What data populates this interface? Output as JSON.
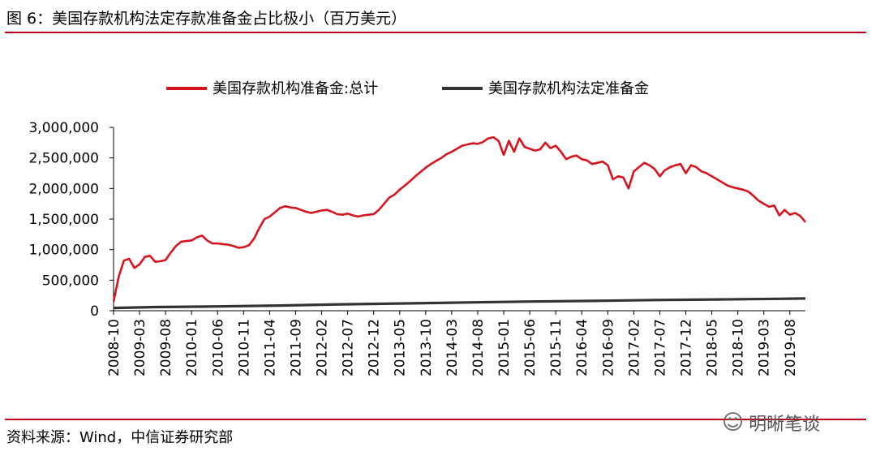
{
  "figure": {
    "title": "图 6：美国存款机构法定存款准备金占比极小（百万美元）",
    "source": "资料来源：Wind，中信证券研究部",
    "watermark": "明晰笔谈",
    "watermark_icon": "wechat-icon"
  },
  "colors": {
    "accent": "#c0001c",
    "series_total": "#d7141e",
    "series_required": "#333333"
  },
  "chart_data": {
    "type": "line",
    "title": "",
    "xlabel": "",
    "ylabel": "",
    "ylim": [
      0,
      3000000
    ],
    "yticks": [
      0,
      500000,
      1000000,
      1500000,
      2000000,
      2500000,
      3000000
    ],
    "ytick_labels": [
      "0",
      "500,000",
      "1,000,000",
      "1,500,000",
      "2,000,000",
      "2,500,000",
      "3,000,000"
    ],
    "x_range": [
      "2008-10",
      "2019-11"
    ],
    "xtick_labels": [
      "2008-10",
      "2009-03",
      "2009-08",
      "2010-01",
      "2010-06",
      "2010-11",
      "2011-04",
      "2011-09",
      "2012-02",
      "2012-07",
      "2012-12",
      "2013-05",
      "2013-10",
      "2014-03",
      "2014-08",
      "2015-01",
      "2015-06",
      "2015-11",
      "2016-04",
      "2016-09",
      "2017-02",
      "2017-07",
      "2017-12",
      "2018-05",
      "2018-10",
      "2019-03",
      "2019-08"
    ],
    "legend_position": "top",
    "grid": false,
    "series": [
      {
        "name": "美国存款机构准备金:总计",
        "color": "#d7141e",
        "points": [
          [
            "2008-10",
            150000
          ],
          [
            "2008-11",
            560000
          ],
          [
            "2008-12",
            820000
          ],
          [
            "2009-01",
            850000
          ],
          [
            "2009-02",
            700000
          ],
          [
            "2009-03",
            760000
          ],
          [
            "2009-04",
            880000
          ],
          [
            "2009-05",
            900000
          ],
          [
            "2009-06",
            800000
          ],
          [
            "2009-07",
            810000
          ],
          [
            "2009-08",
            830000
          ],
          [
            "2009-09",
            950000
          ],
          [
            "2009-10",
            1060000
          ],
          [
            "2009-11",
            1130000
          ],
          [
            "2009-12",
            1140000
          ],
          [
            "2010-01",
            1150000
          ],
          [
            "2010-02",
            1200000
          ],
          [
            "2010-03",
            1230000
          ],
          [
            "2010-04",
            1150000
          ],
          [
            "2010-05",
            1100000
          ],
          [
            "2010-06",
            1100000
          ],
          [
            "2010-07",
            1090000
          ],
          [
            "2010-08",
            1080000
          ],
          [
            "2010-09",
            1060000
          ],
          [
            "2010-10",
            1030000
          ],
          [
            "2010-11",
            1040000
          ],
          [
            "2010-12",
            1070000
          ],
          [
            "2011-01",
            1180000
          ],
          [
            "2011-02",
            1350000
          ],
          [
            "2011-03",
            1500000
          ],
          [
            "2011-04",
            1540000
          ],
          [
            "2011-05",
            1610000
          ],
          [
            "2011-06",
            1680000
          ],
          [
            "2011-07",
            1710000
          ],
          [
            "2011-08",
            1690000
          ],
          [
            "2011-09",
            1680000
          ],
          [
            "2011-10",
            1650000
          ],
          [
            "2011-11",
            1620000
          ],
          [
            "2011-12",
            1600000
          ],
          [
            "2012-01",
            1620000
          ],
          [
            "2012-02",
            1640000
          ],
          [
            "2012-03",
            1650000
          ],
          [
            "2012-04",
            1620000
          ],
          [
            "2012-05",
            1580000
          ],
          [
            "2012-06",
            1570000
          ],
          [
            "2012-07",
            1590000
          ],
          [
            "2012-08",
            1560000
          ],
          [
            "2012-09",
            1540000
          ],
          [
            "2012-10",
            1560000
          ],
          [
            "2012-11",
            1570000
          ],
          [
            "2012-12",
            1580000
          ],
          [
            "2013-01",
            1650000
          ],
          [
            "2013-02",
            1750000
          ],
          [
            "2013-03",
            1850000
          ],
          [
            "2013-04",
            1900000
          ],
          [
            "2013-05",
            1980000
          ],
          [
            "2013-06",
            2050000
          ],
          [
            "2013-07",
            2120000
          ],
          [
            "2013-08",
            2200000
          ],
          [
            "2013-09",
            2270000
          ],
          [
            "2013-10",
            2340000
          ],
          [
            "2013-11",
            2400000
          ],
          [
            "2013-12",
            2450000
          ],
          [
            "2014-01",
            2500000
          ],
          [
            "2014-02",
            2560000
          ],
          [
            "2014-03",
            2600000
          ],
          [
            "2014-04",
            2650000
          ],
          [
            "2014-05",
            2700000
          ],
          [
            "2014-06",
            2720000
          ],
          [
            "2014-07",
            2740000
          ],
          [
            "2014-08",
            2730000
          ],
          [
            "2014-09",
            2760000
          ],
          [
            "2014-10",
            2820000
          ],
          [
            "2014-11",
            2840000
          ],
          [
            "2014-12",
            2780000
          ],
          [
            "2015-01",
            2550000
          ],
          [
            "2015-02",
            2780000
          ],
          [
            "2015-03",
            2600000
          ],
          [
            "2015-04",
            2820000
          ],
          [
            "2015-05",
            2680000
          ],
          [
            "2015-06",
            2650000
          ],
          [
            "2015-07",
            2620000
          ],
          [
            "2015-08",
            2640000
          ],
          [
            "2015-09",
            2750000
          ],
          [
            "2015-10",
            2660000
          ],
          [
            "2015-11",
            2700000
          ],
          [
            "2015-12",
            2600000
          ],
          [
            "2016-01",
            2480000
          ],
          [
            "2016-02",
            2520000
          ],
          [
            "2016-03",
            2540000
          ],
          [
            "2016-04",
            2480000
          ],
          [
            "2016-05",
            2460000
          ],
          [
            "2016-06",
            2400000
          ],
          [
            "2016-07",
            2420000
          ],
          [
            "2016-08",
            2440000
          ],
          [
            "2016-09",
            2380000
          ],
          [
            "2016-10",
            2150000
          ],
          [
            "2016-11",
            2200000
          ],
          [
            "2016-12",
            2180000
          ],
          [
            "2017-01",
            2000000
          ],
          [
            "2017-02",
            2280000
          ],
          [
            "2017-03",
            2350000
          ],
          [
            "2017-04",
            2420000
          ],
          [
            "2017-05",
            2380000
          ],
          [
            "2017-06",
            2320000
          ],
          [
            "2017-07",
            2200000
          ],
          [
            "2017-08",
            2300000
          ],
          [
            "2017-09",
            2350000
          ],
          [
            "2017-10",
            2380000
          ],
          [
            "2017-11",
            2400000
          ],
          [
            "2017-12",
            2250000
          ],
          [
            "2018-01",
            2380000
          ],
          [
            "2018-02",
            2350000
          ],
          [
            "2018-03",
            2280000
          ],
          [
            "2018-04",
            2250000
          ],
          [
            "2018-05",
            2200000
          ],
          [
            "2018-06",
            2150000
          ],
          [
            "2018-07",
            2100000
          ],
          [
            "2018-08",
            2050000
          ],
          [
            "2018-09",
            2020000
          ],
          [
            "2018-10",
            2000000
          ],
          [
            "2018-11",
            1980000
          ],
          [
            "2018-12",
            1950000
          ],
          [
            "2019-01",
            1880000
          ],
          [
            "2019-02",
            1800000
          ],
          [
            "2019-03",
            1750000
          ],
          [
            "2019-04",
            1700000
          ],
          [
            "2019-05",
            1720000
          ],
          [
            "2019-06",
            1560000
          ],
          [
            "2019-07",
            1650000
          ],
          [
            "2019-08",
            1570000
          ],
          [
            "2019-09",
            1600000
          ],
          [
            "2019-10",
            1550000
          ],
          [
            "2019-11",
            1450000
          ]
        ]
      },
      {
        "name": "美国存款机构法定准备金",
        "color": "#333333",
        "points": [
          [
            "2008-10",
            45000
          ],
          [
            "2009-06",
            60000
          ],
          [
            "2010-06",
            70000
          ],
          [
            "2011-06",
            85000
          ],
          [
            "2012-06",
            105000
          ],
          [
            "2013-06",
            120000
          ],
          [
            "2014-06",
            135000
          ],
          [
            "2015-06",
            150000
          ],
          [
            "2016-06",
            160000
          ],
          [
            "2017-06",
            175000
          ],
          [
            "2018-06",
            185000
          ],
          [
            "2019-06",
            195000
          ],
          [
            "2019-11",
            200000
          ]
        ]
      }
    ]
  }
}
